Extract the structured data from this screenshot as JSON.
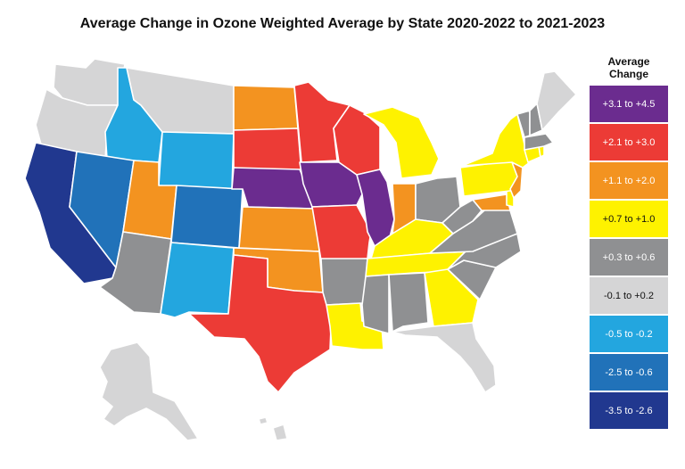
{
  "title": "Average Change in Ozone Weighted Average by State 2020-2022 to 2021-2023",
  "legend": {
    "title_line1": "Average",
    "title_line2": "Change",
    "classes": [
      {
        "label": "+3.1 to +4.5",
        "color": "#6b2c8f",
        "text_color": "#ffffff"
      },
      {
        "label": "+2.1 to +3.0",
        "color": "#ec3b36",
        "text_color": "#ffffff"
      },
      {
        "label": "+1.1 to +2.0",
        "color": "#f39320",
        "text_color": "#ffffff"
      },
      {
        "label": "+0.7 to +1.0",
        "color": "#fef200",
        "text_color": "#111111"
      },
      {
        "label": "+0.3 to +0.6",
        "color": "#8f9092",
        "text_color": "#ffffff"
      },
      {
        "label": "-0.1 to +0.2",
        "color": "#d5d5d6",
        "text_color": "#111111"
      },
      {
        "label": "-0.5 to -0.2",
        "color": "#23a6df",
        "text_color": "#ffffff"
      },
      {
        "label": "-2.5 to -0.6",
        "color": "#2172b9",
        "text_color": "#ffffff"
      },
      {
        "label": "-3.5 to -2.6",
        "color": "#21388f",
        "text_color": "#ffffff"
      }
    ]
  },
  "states": {
    "WA": 5,
    "OR": 5,
    "ID": 6,
    "MT": 5,
    "WY": 6,
    "CA": 8,
    "NV": 7,
    "UT": 2,
    "CO": 7,
    "AZ": 4,
    "NM": 6,
    "ND": 2,
    "SD": 1,
    "NE": 0,
    "KS": 2,
    "OK": 2,
    "TX": 1,
    "MN": 1,
    "IA": 0,
    "MO": 1,
    "AR": 4,
    "LA": 3,
    "WI": 1,
    "IL": 0,
    "MI": 3,
    "IN": 2,
    "OH": 4,
    "KY": 3,
    "TN": 3,
    "MS": 4,
    "AL": 4,
    "GA": 3,
    "FL": 5,
    "SC": 4,
    "NC": 4,
    "VA": 4,
    "WV": 4,
    "MD": 2,
    "DE": 3,
    "PA": 3,
    "NJ": 2,
    "NY": 3,
    "CT": 3,
    "RI": 3,
    "MA": 4,
    "VT": 4,
    "NH": 4,
    "ME": 5,
    "AK": 5,
    "HI": 5
  }
}
